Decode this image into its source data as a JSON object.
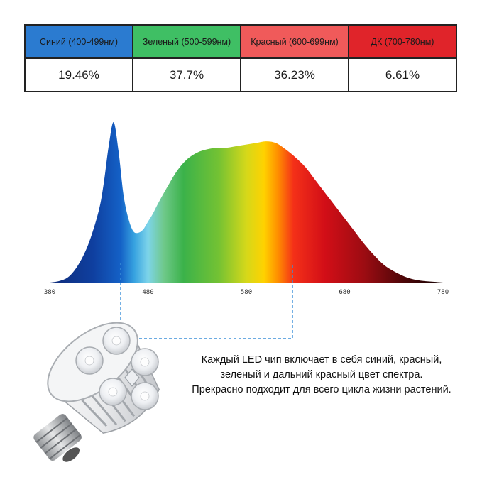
{
  "chart_data": {
    "type": "area",
    "title": "",
    "xlabel": "",
    "ylabel": "",
    "xlim": [
      380,
      780
    ],
    "x_ticks": [
      "380",
      "480",
      "580",
      "680",
      "780"
    ],
    "series": [
      {
        "x": [
          380,
          390,
          400,
          410,
          420,
          430,
          435,
          440,
          445,
          450,
          455,
          460,
          465,
          470,
          475,
          480,
          485,
          490,
          500,
          510,
          520,
          530,
          540,
          550,
          560,
          570,
          580,
          590,
          600,
          610,
          620,
          630,
          640,
          650,
          660,
          670,
          680,
          690,
          700,
          710,
          720,
          730,
          740,
          750,
          760,
          770,
          780
        ],
        "values": [
          0.0,
          0.01,
          0.04,
          0.12,
          0.25,
          0.45,
          0.62,
          0.85,
          1.0,
          0.82,
          0.55,
          0.4,
          0.32,
          0.31,
          0.33,
          0.38,
          0.43,
          0.49,
          0.6,
          0.7,
          0.77,
          0.81,
          0.83,
          0.84,
          0.84,
          0.85,
          0.86,
          0.87,
          0.88,
          0.87,
          0.83,
          0.78,
          0.72,
          0.64,
          0.56,
          0.48,
          0.4,
          0.32,
          0.24,
          0.17,
          0.11,
          0.07,
          0.04,
          0.02,
          0.01,
          0.005,
          0.0
        ]
      }
    ]
  },
  "bands": [
    {
      "label": "Синий (400-499нм)",
      "value": "19.46%",
      "color": "#2b7bd0"
    },
    {
      "label": "Зеленый (500-599нм)",
      "value": "37.7%",
      "color": "#3fbf64"
    },
    {
      "label": "Красный (600-699нм)",
      "value": "36.23%",
      "color": "#f05a5a"
    },
    {
      "label": "ДК (700-780нм)",
      "value": "6.61%",
      "color": "#e0242a"
    }
  ],
  "caption": {
    "line1": "Каждый LED чип включает в себя синий, красный,",
    "line2": "зеленый и дальний красный цвет спектра.",
    "line3": "Прекрасно подходит для всего цикла жизни растений."
  },
  "connector_color": "#3a8fd8"
}
